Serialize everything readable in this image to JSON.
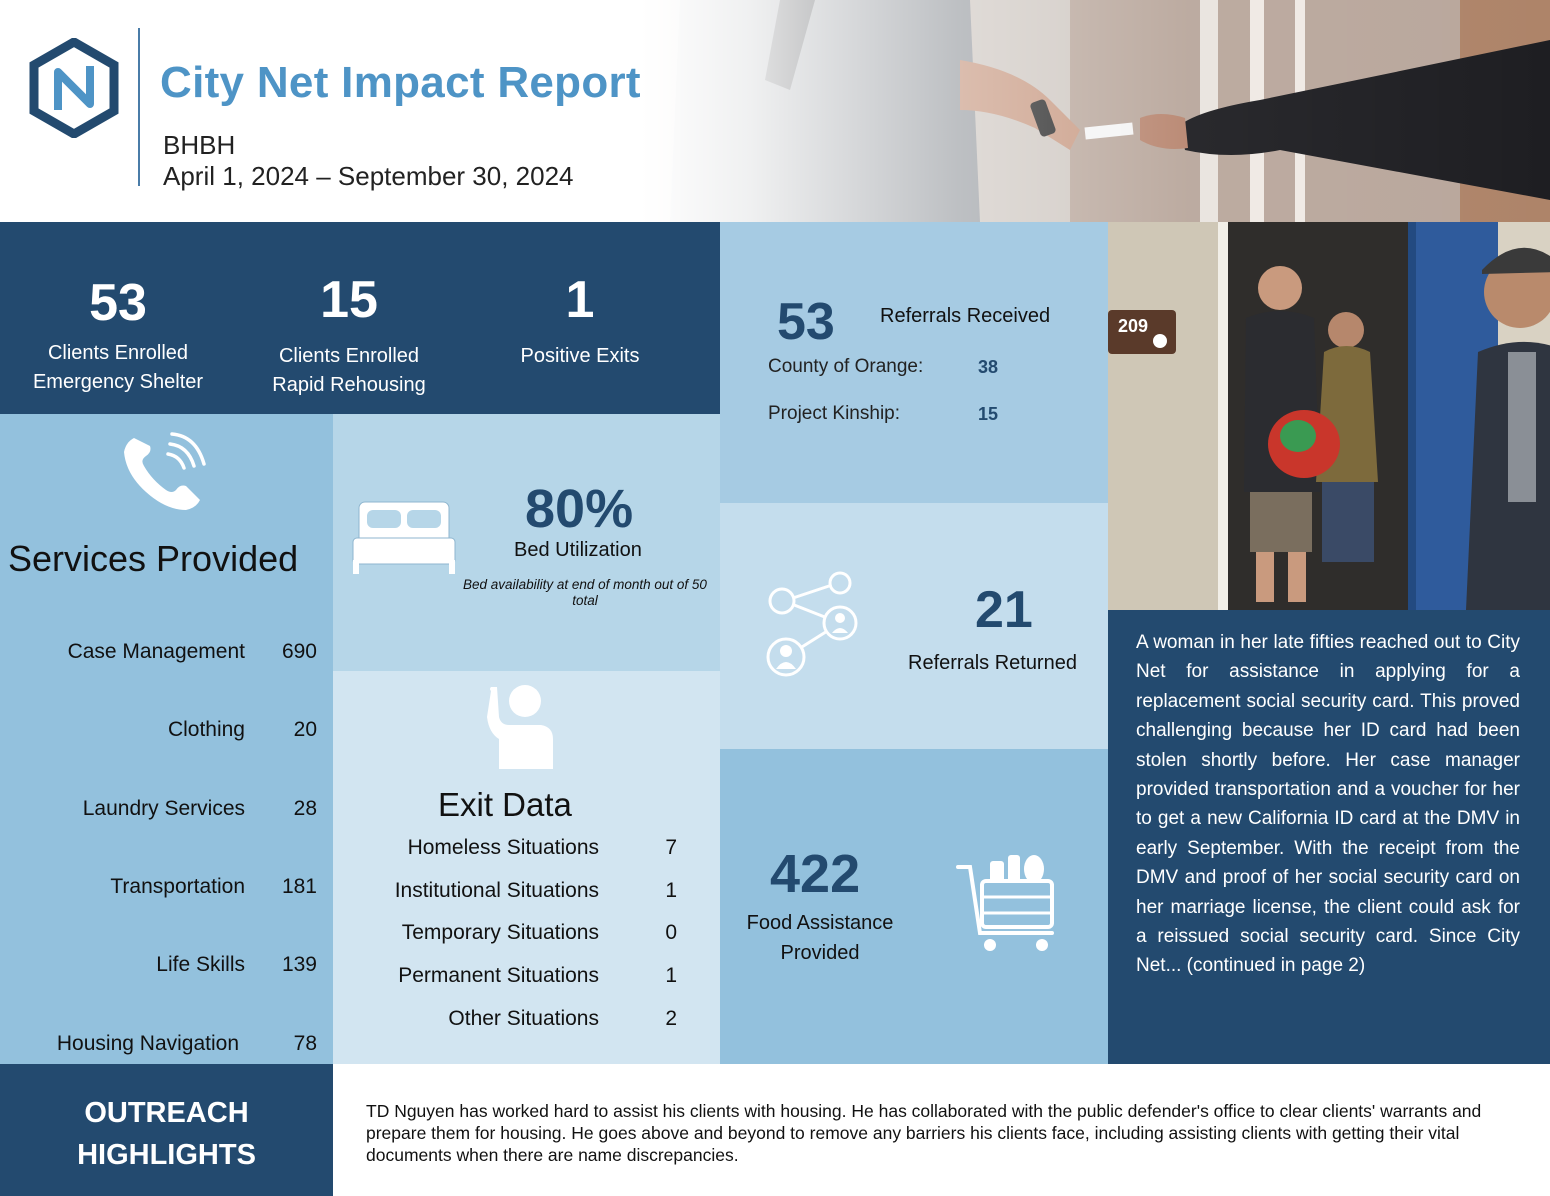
{
  "header": {
    "title": "City Net Impact Report",
    "program": "BHBH",
    "date_range": "April 1, 2024 – September 30, 2024",
    "brand_color": "#4e94c6",
    "dark_navy": "#234a6f"
  },
  "top_stats": [
    {
      "value": "53",
      "label_line1": "Clients Enrolled",
      "label_line2": "Emergency Shelter"
    },
    {
      "value": "15",
      "label_line1": "Clients Enrolled",
      "label_line2": "Rapid Rehousing"
    },
    {
      "value": "1",
      "label_line1": "Positive Exits",
      "label_line2": ""
    }
  ],
  "services": {
    "icon": "phone-icon",
    "title": "Services Provided",
    "items": [
      {
        "name": "Case Management",
        "value": "690"
      },
      {
        "name": "Clothing",
        "value": "20"
      },
      {
        "name": "Laundry Services",
        "value": "28"
      },
      {
        "name": "Transportation",
        "value": "181"
      },
      {
        "name": "Life Skills",
        "value": "139"
      },
      {
        "name": "Housing Navigation",
        "value": "78"
      }
    ]
  },
  "bed": {
    "icon": "bed-icon",
    "value": "80%",
    "label": "Bed Utilization",
    "note": "Bed availability at end of month out of 50 total"
  },
  "exit": {
    "icon": "person-waving-icon",
    "title": "Exit Data",
    "items": [
      {
        "name": "Homeless Situations",
        "value": "7"
      },
      {
        "name": "Institutional Situations",
        "value": "1"
      },
      {
        "name": "Temporary Situations",
        "value": "0"
      },
      {
        "name": "Permanent Situations",
        "value": "1"
      },
      {
        "name": "Other Situations",
        "value": "2"
      }
    ]
  },
  "referrals": {
    "value": "53",
    "label": "Referrals Received",
    "sources": [
      {
        "name": "County of Orange:",
        "value": "38"
      },
      {
        "name": "Project Kinship:",
        "value": "15"
      }
    ]
  },
  "returned": {
    "icon": "network-share-icon",
    "value": "21",
    "label": "Referrals Returned"
  },
  "food": {
    "icon": "grocery-cart-icon",
    "value": "422",
    "label_line1": "Food Assistance",
    "label_line2": "Provided"
  },
  "story": {
    "photo_door_number": "209",
    "text": "A woman in her late fifties reached out to City Net for assistance in applying for a replacement social security card. This proved challenging because her ID card had been stolen shortly before. Her case manager provided transportation and a voucher for her to get a new California ID card at the DMV in early September. With the receipt from the DMV and proof of her social security card on her marriage license, the client could ask for a reissued social security card. Since City Net... (continued in page 2)"
  },
  "outreach": {
    "label_line1": "OUTREACH",
    "label_line2": "HIGHLIGHTS",
    "text": "TD Nguyen has worked hard to assist his clients with housing. He has collaborated with the public defender's office to clear clients' warrants and prepare them for housing. He goes above and beyond to remove any barriers his clients face, including assisting clients with getting their vital documents when there are name discrepancies."
  }
}
